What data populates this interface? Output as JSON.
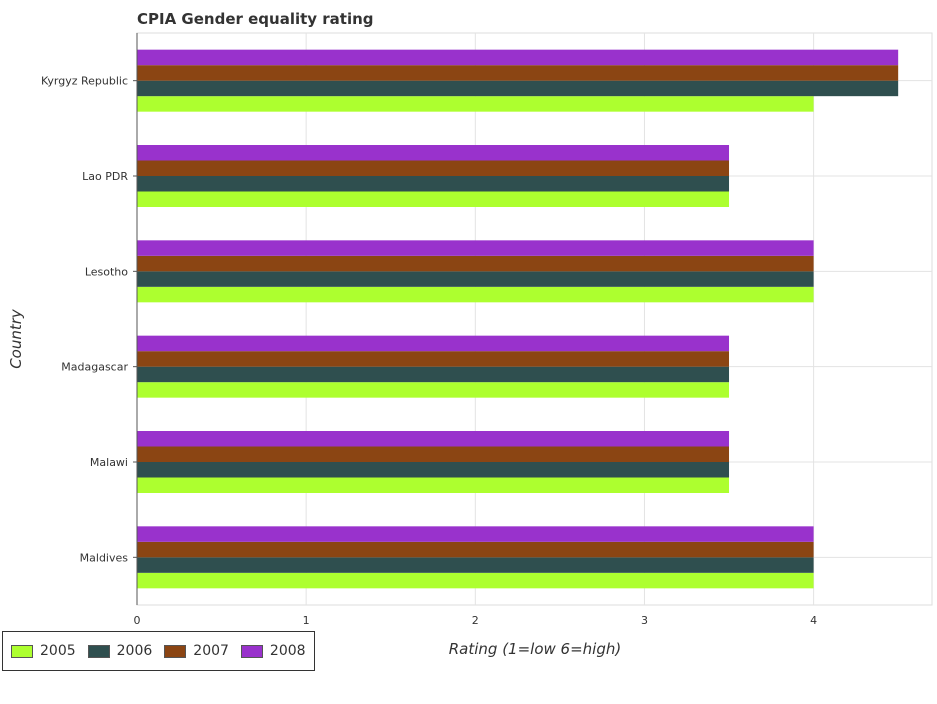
{
  "chart_data": {
    "type": "bar",
    "orientation": "horizontal",
    "title": "CPIA Gender equality rating",
    "xlabel": "Rating (1=low 6=high)",
    "ylabel": "Country",
    "xlim": [
      0,
      4.7
    ],
    "xticks": [
      0,
      1,
      2,
      3,
      4
    ],
    "tick_labels": [
      "0",
      "1",
      "2",
      "3",
      "4"
    ],
    "categories": [
      "Kyrgyz Republic",
      "Lao PDR",
      "Lesotho",
      "Madagascar",
      "Malawi",
      "Maldives"
    ],
    "series": [
      {
        "name": "2005",
        "color": "#adff2f",
        "values": [
          4.0,
          3.5,
          4.0,
          3.5,
          3.5,
          4.0
        ]
      },
      {
        "name": "2006",
        "color": "#2f4f4f",
        "values": [
          4.5,
          3.5,
          4.0,
          3.5,
          3.5,
          4.0
        ]
      },
      {
        "name": "2007",
        "color": "#8b4513",
        "values": [
          4.5,
          3.5,
          4.0,
          3.5,
          3.5,
          4.0
        ]
      },
      {
        "name": "2008",
        "color": "#9932cc",
        "values": [
          4.5,
          3.5,
          4.0,
          3.5,
          3.5,
          4.0
        ]
      }
    ],
    "grid": true,
    "legend_position": "bottom-left"
  }
}
